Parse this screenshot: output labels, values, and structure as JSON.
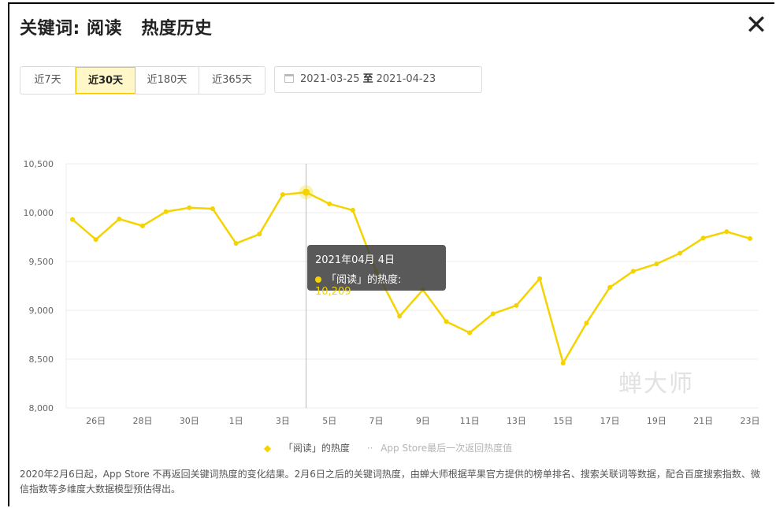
{
  "header": {
    "title": "关键词: 阅读   热度历史",
    "close_label": "✕"
  },
  "range_buttons": [
    {
      "label": "近7天",
      "active": false
    },
    {
      "label": "近30天",
      "active": true
    },
    {
      "label": "近180天",
      "active": false
    },
    {
      "label": "近365天",
      "active": false
    }
  ],
  "date_range": {
    "start": "2021-03-25",
    "separator": "至",
    "end": "2021-04-23",
    "icon": "calendar-icon"
  },
  "tooltip": {
    "date": "2021年04月 4日",
    "label": "「阅读」的热度:",
    "value": "10,209"
  },
  "legend": {
    "series_label": "「阅读」的热度",
    "secondary_label": "App Store最后一次返回热度值"
  },
  "watermark": "蝉大师",
  "footnote": "2020年2月6日起，App Store 不再返回关键词热度的变化结果。2月6日之后的关键词热度，由蝉大师根据苹果官方提供的榜单排名、搜索关联词等数据，配合百度搜索指数、微信指数等多维度大数据模型预估得出。",
  "colors": {
    "line": "#f5d300",
    "grid": "#ececec",
    "axis_text": "#666666"
  },
  "chart_data": {
    "type": "line",
    "x": [
      "25日",
      "26日",
      "27日",
      "28日",
      "29日",
      "30日",
      "31日",
      "1日",
      "2日",
      "3日",
      "4日",
      "5日",
      "6日",
      "7日",
      "8日",
      "9日",
      "10日",
      "11日",
      "12日",
      "13日",
      "14日",
      "15日",
      "16日",
      "17日",
      "18日",
      "19日",
      "20日",
      "21日",
      "22日",
      "23日"
    ],
    "tick_labels": [
      "26日",
      "28日",
      "30日",
      "1日",
      "3日",
      "5日",
      "7日",
      "9日",
      "11日",
      "13日",
      "15日",
      "17日",
      "19日",
      "21日",
      "23日"
    ],
    "series": [
      {
        "name": "「阅读」的热度",
        "values": [
          9930,
          9725,
          9935,
          9865,
          10010,
          10050,
          10040,
          9685,
          9780,
          10185,
          10209,
          10090,
          10025,
          9400,
          8940,
          9210,
          8885,
          8770,
          8965,
          9050,
          9325,
          8460,
          8870,
          9235,
          9400,
          9475,
          9585,
          9740,
          9805,
          9735
        ]
      }
    ],
    "ylim": [
      8000,
      10500
    ],
    "yticks": [
      8000,
      8500,
      9000,
      9500,
      10000,
      10500
    ],
    "ytick_labels": [
      "8,000",
      "8,500",
      "9,000",
      "9,500",
      "10,000",
      "10,500"
    ],
    "highlight_index": 10,
    "grid": true,
    "legend_position": "bottom"
  }
}
